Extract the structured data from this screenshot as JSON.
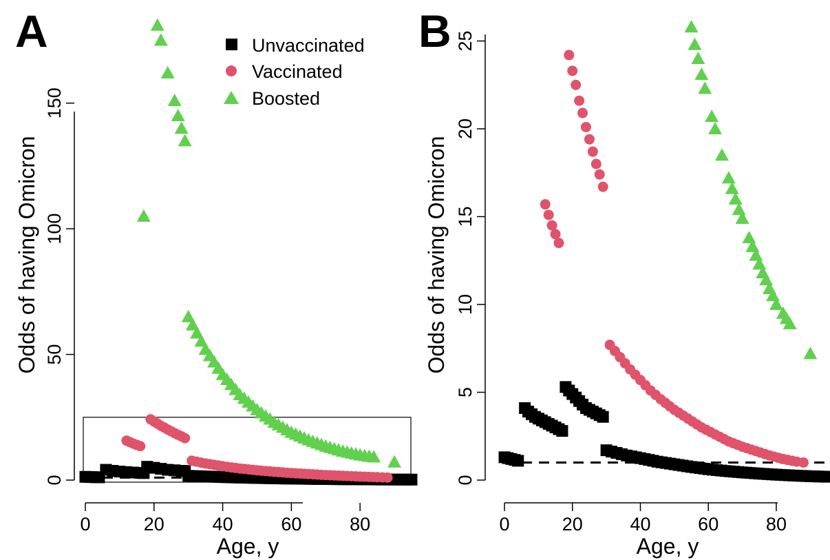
{
  "colors": {
    "unvaccinated": "#000000",
    "vaccinated": "#DF536B",
    "boosted": "#61D04F"
  },
  "chart_data": [
    {
      "type": "scatter",
      "panel_label": "A",
      "xlabel": "Age, y",
      "ylabel": "Odds of having Omicron",
      "xlim": [
        0,
        95
      ],
      "ylim": [
        0,
        185
      ],
      "xticks": [
        0,
        20,
        40,
        60,
        80
      ],
      "yticks": [
        0,
        50,
        100,
        150
      ],
      "legend": {
        "placement": "top-right",
        "entries": [
          "Unvaccinated",
          "Vaccinated",
          "Boosted"
        ]
      },
      "reference_line": {
        "y": 1,
        "style": "dashed"
      },
      "inset_box": {
        "x": [
          0,
          95
        ],
        "y": [
          0,
          25
        ]
      },
      "series": [
        {
          "name": "Unvaccinated",
          "marker": "square",
          "color": "#000000",
          "segments": [
            {
              "x": [
                0,
                1,
                2,
                3,
                4
              ],
              "y": [
                1.3,
                1.25,
                1.2,
                1.15,
                1.1
              ]
            },
            {
              "x": [
                6,
                8,
                10,
                12,
                14,
                16,
                17
              ],
              "y": [
                4.1,
                3.7,
                3.4,
                3.2,
                3.0,
                2.85,
                2.8
              ]
            },
            {
              "x": [
                18,
                20,
                22,
                24,
                26,
                28,
                29
              ],
              "y": [
                5.3,
                4.9,
                4.5,
                4.1,
                3.9,
                3.7,
                3.6
              ]
            },
            {
              "x": [
                30,
                35,
                40,
                45,
                50,
                55,
                60,
                65,
                70,
                75,
                80,
                85,
                90,
                95
              ],
              "y": [
                1.7,
                1.45,
                1.2,
                1.0,
                0.85,
                0.7,
                0.6,
                0.5,
                0.42,
                0.35,
                0.3,
                0.25,
                0.22,
                0.2
              ]
            }
          ]
        },
        {
          "name": "Vaccinated",
          "marker": "circle",
          "color": "#DF536B",
          "segments": [
            {
              "x": [
                12,
                13,
                14,
                15,
                16
              ],
              "y": [
                15.7,
                15.1,
                14.5,
                14.0,
                13.5
              ]
            },
            {
              "x": [
                19,
                20,
                21,
                22,
                23,
                24,
                25,
                26,
                27,
                28,
                29
              ],
              "y": [
                24.2,
                23.3,
                22.5,
                21.6,
                20.9,
                20.1,
                19.4,
                18.7,
                18.0,
                17.4,
                16.7
              ]
            },
            {
              "x": [
                31,
                35,
                40,
                45,
                50,
                55,
                60,
                65,
                70,
                75,
                80,
                85,
                88
              ],
              "y": [
                7.7,
                6.6,
                5.5,
                4.6,
                3.9,
                3.3,
                2.8,
                2.4,
                2.0,
                1.7,
                1.4,
                1.15,
                1.0
              ]
            }
          ]
        },
        {
          "name": "Boosted",
          "marker": "triangle",
          "color": "#61D04F",
          "segments": [
            {
              "x": [
                17
              ],
              "y": [
                105
              ]
            },
            {
              "x": [
                21,
                22,
                24,
                26,
                27,
                28,
                29
              ],
              "y": [
                181,
                175,
                162,
                151,
                145,
                140,
                135
              ]
            },
            {
              "x": [
                30,
                35,
                40,
                45,
                50,
                55,
                60,
                65,
                70,
                75,
                80,
                84
              ],
              "y": [
                65,
                52,
                42,
                34,
                28,
                23,
                19,
                16,
                13.5,
                11.5,
                10,
                9.2
              ]
            },
            {
              "x": [
                90
              ],
              "y": [
                7.2
              ]
            }
          ]
        }
      ]
    },
    {
      "type": "scatter",
      "panel_label": "B",
      "xlabel": "Age, y",
      "ylabel": "Odds of having Omicron",
      "xlim": [
        0,
        95
      ],
      "ylim": [
        0,
        26
      ],
      "xticks": [
        0,
        20,
        40,
        60,
        80
      ],
      "yticks": [
        0,
        5,
        10,
        15,
        20,
        25
      ],
      "reference_line": {
        "y": 1,
        "style": "dashed"
      },
      "series": [
        {
          "name": "Unvaccinated",
          "marker": "square",
          "color": "#000000",
          "segments": [
            {
              "x": [
                0,
                1,
                2,
                3,
                4
              ],
              "y": [
                1.3,
                1.25,
                1.2,
                1.15,
                1.1
              ]
            },
            {
              "x": [
                6,
                7,
                8,
                9,
                10,
                11,
                12,
                13,
                14,
                15,
                16,
                17
              ],
              "y": [
                4.1,
                3.9,
                3.75,
                3.6,
                3.5,
                3.4,
                3.3,
                3.2,
                3.1,
                3.0,
                2.9,
                2.8
              ]
            },
            {
              "x": [
                18,
                19,
                20,
                21,
                22,
                23,
                24,
                25,
                26,
                27,
                28,
                29
              ],
              "y": [
                5.3,
                5.1,
                4.9,
                4.7,
                4.5,
                4.3,
                4.1,
                4.0,
                3.9,
                3.8,
                3.7,
                3.6
              ]
            },
            {
              "x": [
                30,
                33,
                36,
                40,
                45,
                50,
                55,
                60,
                65,
                70,
                75,
                80,
                85,
                90,
                95
              ],
              "y": [
                1.7,
                1.55,
                1.4,
                1.25,
                1.05,
                0.9,
                0.75,
                0.62,
                0.52,
                0.44,
                0.37,
                0.31,
                0.26,
                0.22,
                0.19
              ]
            }
          ]
        },
        {
          "name": "Vaccinated",
          "marker": "circle",
          "color": "#DF536B",
          "segments": [
            {
              "x": [
                12,
                13,
                14,
                15,
                16
              ],
              "y": [
                15.7,
                15.1,
                14.5,
                14.0,
                13.5
              ]
            },
            {
              "x": [
                19,
                20,
                21,
                22,
                23,
                24,
                25,
                26,
                27,
                28,
                29
              ],
              "y": [
                24.2,
                23.3,
                22.5,
                21.6,
                20.9,
                20.1,
                19.4,
                18.7,
                18.0,
                17.4,
                16.7
              ]
            },
            {
              "x": [
                31,
                34,
                37,
                40,
                43,
                46,
                50,
                54,
                58,
                62,
                66,
                70,
                74,
                78,
                82,
                86,
                88
              ],
              "y": [
                7.7,
                7.0,
                6.3,
                5.7,
                5.1,
                4.6,
                4.0,
                3.5,
                3.0,
                2.6,
                2.2,
                1.9,
                1.65,
                1.4,
                1.2,
                1.05,
                1.0
              ]
            }
          ]
        },
        {
          "name": "Boosted",
          "marker": "triangle",
          "color": "#61D04F",
          "segments": [
            {
              "x": [
                55,
                56,
                57,
                58,
                59,
                61,
                62,
                64,
                66,
                67,
                68,
                69,
                70,
                72,
                73,
                74,
                75,
                76,
                77,
                78,
                79,
                80,
                82,
                83,
                84
              ],
              "y": [
                25.8,
                24.8,
                24.0,
                23.1,
                22.3,
                20.7,
                20.0,
                18.5,
                17.2,
                16.6,
                16.0,
                15.4,
                14.9,
                13.8,
                13.3,
                12.8,
                12.3,
                11.8,
                11.4,
                10.9,
                10.5,
                10.0,
                9.5,
                9.2,
                8.9
              ]
            },
            {
              "x": [
                90
              ],
              "y": [
                7.2
              ]
            }
          ]
        }
      ]
    }
  ]
}
